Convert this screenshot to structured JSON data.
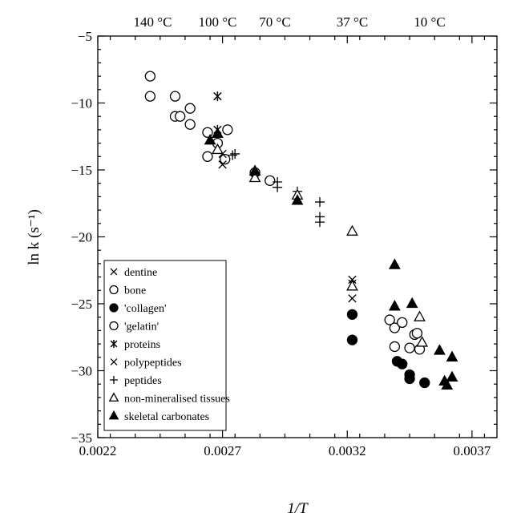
{
  "chart_data": {
    "type": "scatter",
    "title": "",
    "xlabel": "1/T",
    "ylabel": "ln k (s⁻¹)",
    "xlim": [
      0.0022,
      0.0038
    ],
    "ylim": [
      -35,
      -5
    ],
    "x_ticks": [
      0.0022,
      0.0027,
      0.0032,
      0.0037
    ],
    "x_tick_labels": [
      "0.0022",
      "0.0027",
      "0.0032",
      "0.0037"
    ],
    "y_ticks": [
      -35,
      -30,
      -25,
      -20,
      -15,
      -10,
      -5
    ],
    "y_tick_labels": [
      "−35",
      "−30",
      "−25",
      "−20",
      "−15",
      "−10",
      "−5"
    ],
    "top_axis": {
      "ticks": [
        0.00242,
        0.00268,
        0.00291,
        0.00322,
        0.00353
      ],
      "labels": [
        "140 °C",
        "100 °C",
        "70 °C",
        "37 °C",
        "10 °C"
      ]
    },
    "grid": false,
    "legend_position": "bottom-left",
    "series": [
      {
        "name": "dentine",
        "marker": "x",
        "points": []
      },
      {
        "name": "bone",
        "marker": "open-circle",
        "points": [
          [
            0.00241,
            -8.0
          ],
          [
            0.00241,
            -9.5
          ],
          [
            0.00251,
            -9.5
          ],
          [
            0.00251,
            -11.0
          ],
          [
            0.00253,
            -11.0
          ],
          [
            0.00257,
            -10.4
          ],
          [
            0.00257,
            -11.6
          ],
          [
            0.00264,
            -12.2
          ],
          [
            0.00264,
            -14.0
          ],
          [
            0.00268,
            -13.0
          ],
          [
            0.00271,
            -14.2
          ],
          [
            0.00272,
            -12.0
          ],
          [
            0.00283,
            -15.2
          ],
          [
            0.00289,
            -15.8
          ]
        ]
      },
      {
        "name": "'collagen'",
        "marker": "filled-circle",
        "points": [
          [
            0.00322,
            -25.8
          ],
          [
            0.00322,
            -27.7
          ],
          [
            0.0034,
            -29.3
          ],
          [
            0.00342,
            -29.5
          ],
          [
            0.00345,
            -30.3
          ],
          [
            0.00345,
            -30.6
          ],
          [
            0.00351,
            -30.9
          ]
        ]
      },
      {
        "name": "'gelatin'",
        "marker": "open-circle",
        "points": [
          [
            0.00337,
            -26.2
          ],
          [
            0.00339,
            -26.8
          ],
          [
            0.00339,
            -28.2
          ],
          [
            0.00342,
            -26.4
          ],
          [
            0.00345,
            -28.3
          ],
          [
            0.00347,
            -27.3
          ],
          [
            0.00348,
            -27.2
          ],
          [
            0.00349,
            -28.4
          ]
        ]
      },
      {
        "name": "proteins",
        "marker": "asterisk",
        "points": [
          [
            0.00268,
            -9.5
          ],
          [
            0.00268,
            -12.0
          ]
        ]
      },
      {
        "name": "polypeptides",
        "marker": "x",
        "points": [
          [
            0.0027,
            -14.6
          ],
          [
            0.0027,
            -13.8
          ],
          [
            0.00322,
            -23.2
          ],
          [
            0.00322,
            -24.6
          ],
          [
            0.00322,
            -23.5
          ]
        ]
      },
      {
        "name": "peptides",
        "marker": "plus",
        "points": [
          [
            0.00274,
            -13.9
          ],
          [
            0.00275,
            -13.8
          ],
          [
            0.00283,
            -15.4
          ],
          [
            0.00292,
            -15.9
          ],
          [
            0.00292,
            -16.3
          ],
          [
            0.003,
            -16.6
          ],
          [
            0.00309,
            -17.4
          ],
          [
            0.00309,
            -18.5
          ],
          [
            0.00309,
            -18.9
          ]
        ]
      },
      {
        "name": "non-mineralised tissues",
        "marker": "open-triangle",
        "points": [
          [
            0.00268,
            -13.5
          ],
          [
            0.00283,
            -15.6
          ],
          [
            0.003,
            -16.9
          ],
          [
            0.00322,
            -19.6
          ],
          [
            0.00322,
            -23.7
          ],
          [
            0.00349,
            -26.0
          ],
          [
            0.0035,
            -27.9
          ]
        ]
      },
      {
        "name": "skeletal carbonates",
        "marker": "filled-triangle",
        "points": [
          [
            0.00265,
            -12.8
          ],
          [
            0.00268,
            -12.3
          ],
          [
            0.00283,
            -15.1
          ],
          [
            0.003,
            -17.3
          ],
          [
            0.00339,
            -22.1
          ],
          [
            0.00339,
            -25.2
          ],
          [
            0.00346,
            -25.0
          ],
          [
            0.00357,
            -28.5
          ],
          [
            0.00359,
            -30.8
          ],
          [
            0.0036,
            -31.1
          ],
          [
            0.00362,
            -29.0
          ],
          [
            0.00362,
            -30.5
          ]
        ]
      }
    ]
  }
}
